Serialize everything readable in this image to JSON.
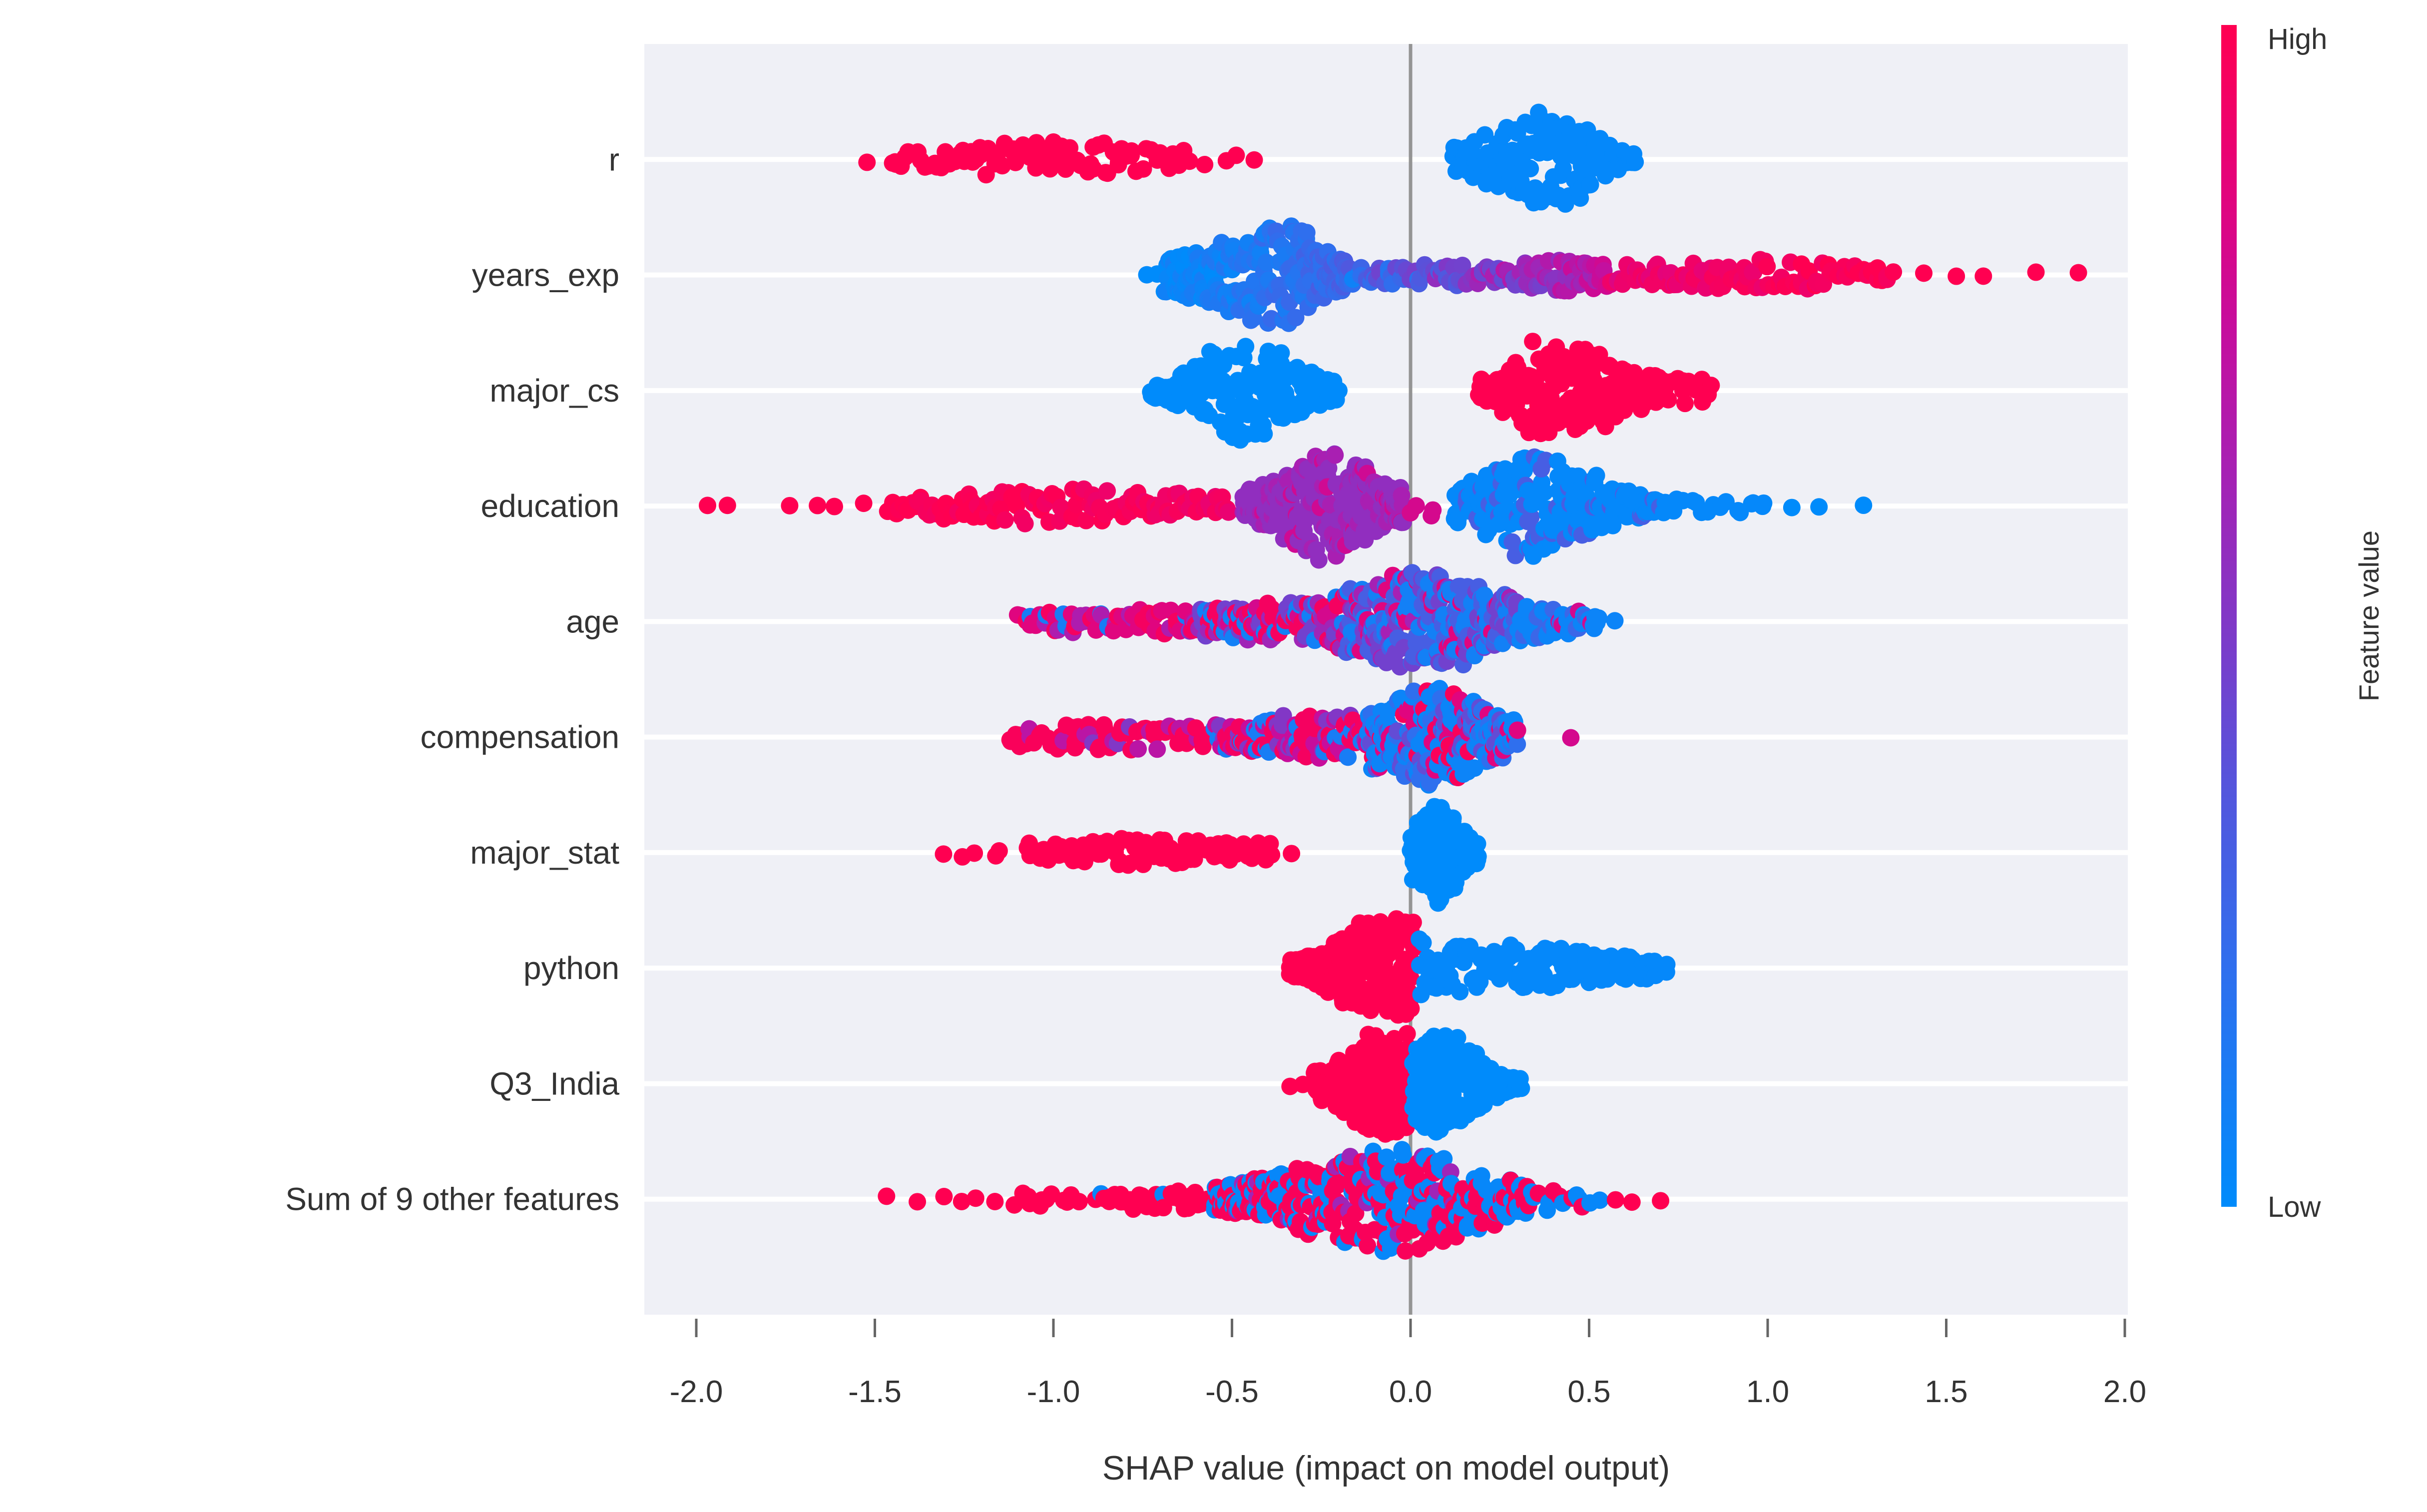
{
  "chart_data": {
    "type": "scatter",
    "variant": "shap-beeswarm-summary",
    "title": "",
    "xlabel": "SHAP value (impact on model output)",
    "x_ticks": [
      -2.0,
      -1.5,
      -1.0,
      -0.5,
      0.0,
      0.5,
      1.0,
      1.5,
      2.0
    ],
    "x_tick_labels": [
      "-2.0",
      "-1.5",
      "-1.0",
      "-0.5",
      "0.0",
      "0.5",
      "1.0",
      "1.5",
      "2.0"
    ],
    "xlim": [
      -2.15,
      2.01
    ],
    "grid": "horizontal-white-lines",
    "zero_line": true,
    "legend_position": "right-colorbar",
    "colorbar": {
      "high_label": "High",
      "low_label": "Low",
      "title": "Feature value"
    },
    "colors": {
      "high": "#ff0051",
      "low": "#008bfb",
      "plot_background": "#eff0f6",
      "gridline": "#ffffff",
      "zero_line": "#949494",
      "text": "#333333"
    },
    "colormap_stops": [
      [
        0.0,
        "#008bfb"
      ],
      [
        0.2,
        "#2f6fee"
      ],
      [
        0.35,
        "#5356dd"
      ],
      [
        0.5,
        "#8237c6"
      ],
      [
        0.62,
        "#a621b4"
      ],
      [
        0.75,
        "#c70d9c"
      ],
      [
        0.87,
        "#e50379"
      ],
      [
        1.0,
        "#ff0051"
      ]
    ],
    "features": [
      {
        "name": "r",
        "segments": [
          {
            "kind": "dots",
            "xs": [
              -1.52
            ],
            "color": {
              "t": 1
            }
          },
          {
            "kind": "swarm",
            "from": -1.46,
            "to": -0.62,
            "n": 85,
            "w": [
              0.2,
              0.38,
              0.2
            ],
            "peak": 0.5,
            "color": {
              "t": 1
            }
          },
          {
            "kind": "swarm",
            "from": -0.59,
            "to": -0.44,
            "n": 4,
            "w": [
              0.1,
              0.12,
              0.1
            ],
            "peak": 0.5,
            "color": {
              "t": 1
            }
          },
          {
            "kind": "swarm",
            "from": 0.12,
            "to": 0.63,
            "n": 195,
            "w": [
              0.28,
              1.0,
              0.1
            ],
            "peak": 0.55,
            "color": {
              "t": 0.02
            }
          }
        ]
      },
      {
        "name": "years_exp",
        "segments": [
          {
            "kind": "dots",
            "xs": [
              -0.74,
              -0.71
            ],
            "color": {
              "t": 0
            }
          },
          {
            "kind": "swarm",
            "from": -0.69,
            "to": -0.16,
            "n": 235,
            "w": [
              0.35,
              1.0,
              0.3
            ],
            "peak": 0.62,
            "color": {
              "grad": [
                0.0,
                0.28
              ],
              "noise": 0.08
            }
          },
          {
            "kind": "swarm",
            "from": -0.16,
            "to": 0.29,
            "n": 65,
            "w": [
              0.16,
              0.2,
              0.16
            ],
            "peak": 0.5,
            "color": {
              "grad": [
                0.2,
                0.55
              ],
              "noise": 0.18
            }
          },
          {
            "kind": "swarm",
            "from": 0.29,
            "to": 0.56,
            "n": 55,
            "w": [
              0.26,
              0.34,
              0.26
            ],
            "peak": 0.5,
            "color": {
              "grad": [
                0.5,
                0.75
              ],
              "noise": 0.12
            }
          },
          {
            "kind": "swarm",
            "from": 0.56,
            "to": 1.35,
            "n": 105,
            "w": [
              0.2,
              0.3,
              0.18
            ],
            "peak": 0.55,
            "color": {
              "grad": [
                0.88,
                1.0
              ],
              "noise": 0.05
            }
          },
          {
            "kind": "dots",
            "xs": [
              1.44,
              1.53,
              1.6,
              1.75,
              1.87
            ],
            "color": {
              "t": 1
            }
          }
        ]
      },
      {
        "name": "major_cs",
        "segments": [
          {
            "kind": "swarm",
            "from": -0.73,
            "to": -0.2,
            "n": 215,
            "w": [
              0.15,
              0.95,
              0.2
            ],
            "peak": 0.5,
            "color": {
              "t": 0
            }
          },
          {
            "kind": "swarm",
            "from": 0.19,
            "to": 0.7,
            "n": 215,
            "w": [
              0.2,
              1.0,
              0.28
            ],
            "peak": 0.4,
            "color": {
              "t": 1
            }
          },
          {
            "kind": "swarm",
            "from": 0.7,
            "to": 0.85,
            "n": 22,
            "w": [
              0.26,
              0.32,
              0.15
            ],
            "peak": 0.5,
            "color": {
              "t": 1
            }
          }
        ]
      },
      {
        "name": "education",
        "segments": [
          {
            "kind": "dots",
            "xs": [
              -1.97,
              -1.91,
              -1.74,
              -1.66,
              -1.61,
              -1.53
            ],
            "color": {
              "t": 1
            }
          },
          {
            "kind": "swarm",
            "from": -1.47,
            "to": -0.5,
            "n": 125,
            "w": [
              0.2,
              0.36,
              0.22
            ],
            "peak": 0.45,
            "color": {
              "grad": [
                1.0,
                0.93
              ],
              "noise": 0.04
            }
          },
          {
            "kind": "swarm",
            "from": -0.47,
            "to": -0.02,
            "n": 275,
            "w": [
              0.3,
              1.0,
              0.35
            ],
            "peak": 0.55,
            "color": {
              "mix": [
                [
                  0.55,
                  0.72
                ],
                [
                  0.63,
                  0.2
                ],
                [
                  0.78,
                  0.08
                ]
              ]
            }
          },
          {
            "kind": "swarm",
            "from": 0.0,
            "to": 0.09,
            "n": 4,
            "w": [
              0.25,
              0.3,
              0.25
            ],
            "peak": 0.5,
            "color": {
              "mix": [
                [
                  0.8,
                  0.7
                ],
                [
                  0.9,
                  0.3
                ]
              ]
            }
          },
          {
            "kind": "swarm",
            "from": 0.12,
            "to": 0.7,
            "n": 235,
            "w": [
              0.35,
              1.0,
              0.16
            ],
            "peak": 0.36,
            "color": {
              "mix": [
                [
                  0.02,
                  0.85
                ],
                [
                  0.3,
                  0.15
                ]
              ]
            }
          },
          {
            "kind": "swarm",
            "from": 0.7,
            "to": 1.0,
            "n": 18,
            "w": [
              0.16,
              0.16,
              0.12
            ],
            "peak": 0.5,
            "color": {
              "t": 0.02
            }
          },
          {
            "kind": "dots",
            "xs": [
              1.07,
              1.14,
              1.27
            ],
            "color": {
              "t": 0
            }
          }
        ]
      },
      {
        "name": "age",
        "segments": [
          {
            "kind": "swarm",
            "from": -1.1,
            "to": -0.62,
            "n": 55,
            "w": [
              0.16,
              0.24,
              0.26
            ],
            "peak": 0.6,
            "color": {
              "mix": [
                [
                  0.85,
                  0.45
                ],
                [
                  0.65,
                  0.28
                ],
                [
                  0.1,
                  0.15
                ],
                [
                  0.95,
                  0.12
                ]
              ]
            }
          },
          {
            "kind": "swarm",
            "from": -0.62,
            "to": -0.18,
            "n": 130,
            "w": [
              0.28,
              0.42,
              0.55
            ],
            "peak": 0.7,
            "color": {
              "mix": [
                [
                  0.95,
                  0.3
                ],
                [
                  0.8,
                  0.15
                ],
                [
                  0.45,
                  0.18
                ],
                [
                  0.08,
                  0.25
                ],
                [
                  0.6,
                  0.12
                ]
              ]
            }
          },
          {
            "kind": "swarm",
            "from": -0.18,
            "to": 0.3,
            "n": 270,
            "w": [
              0.6,
              1.0,
              0.5
            ],
            "peak": 0.46,
            "color": {
              "mix": [
                [
                  0.3,
                  0.28
                ],
                [
                  0.45,
                  0.25
                ],
                [
                  0.08,
                  0.25
                ],
                [
                  0.85,
                  0.12
                ],
                [
                  0.62,
                  0.1
                ]
              ]
            }
          },
          {
            "kind": "swarm",
            "from": 0.3,
            "to": 0.53,
            "n": 55,
            "w": [
              0.45,
              0.32,
              0.15
            ],
            "peak": 0.2,
            "color": {
              "mix": [
                [
                  0.05,
                  0.6
                ],
                [
                  0.25,
                  0.28
                ],
                [
                  0.8,
                  0.12
                ]
              ]
            }
          },
          {
            "kind": "dots",
            "xs": [
              0.57
            ],
            "color": {
              "t": 0.05
            }
          }
        ]
      },
      {
        "name": "compensation",
        "segments": [
          {
            "kind": "swarm",
            "from": -1.13,
            "to": -0.55,
            "n": 70,
            "w": [
              0.18,
              0.3,
              0.22
            ],
            "peak": 0.4,
            "color": {
              "mix": [
                [
                  0.97,
                  0.85
                ],
                [
                  0.7,
                  0.1
                ],
                [
                  0.5,
                  0.05
                ]
              ]
            }
          },
          {
            "kind": "swarm",
            "from": -0.55,
            "to": -0.12,
            "n": 115,
            "w": [
              0.25,
              0.45,
              0.6
            ],
            "peak": 0.75,
            "color": {
              "mix": [
                [
                  0.95,
                  0.48
                ],
                [
                  0.75,
                  0.2
                ],
                [
                  0.5,
                  0.12
                ],
                [
                  0.1,
                  0.2
                ]
              ]
            }
          },
          {
            "kind": "swarm",
            "from": -0.12,
            "to": 0.3,
            "n": 255,
            "w": [
              0.6,
              1.0,
              0.4
            ],
            "peak": 0.45,
            "color": {
              "mix": [
                [
                  0.05,
                  0.45
                ],
                [
                  0.2,
                  0.22
                ],
                [
                  0.4,
                  0.1
                ],
                [
                  0.85,
                  0.13
                ],
                [
                  0.97,
                  0.1
                ]
              ]
            }
          },
          {
            "kind": "dots",
            "xs": [
              0.45
            ],
            "color": {
              "t": 0.8
            }
          }
        ]
      },
      {
        "name": "major_stat",
        "segments": [
          {
            "kind": "dots",
            "xs": [
              -1.31
            ],
            "color": {
              "t": 1
            }
          },
          {
            "kind": "swarm",
            "from": -1.25,
            "to": -1.12,
            "n": 4,
            "w": [
              0.1,
              0.12,
              0.1
            ],
            "peak": 0.5,
            "color": {
              "t": 1
            }
          },
          {
            "kind": "swarm",
            "from": -1.08,
            "to": -0.38,
            "n": 95,
            "w": [
              0.18,
              0.26,
              0.18
            ],
            "peak": 0.5,
            "color": {
              "t": 1
            }
          },
          {
            "kind": "dots",
            "xs": [
              -0.33
            ],
            "color": {
              "t": 1
            }
          },
          {
            "kind": "swarm",
            "from": 0.0,
            "to": 0.19,
            "n": 150,
            "w": [
              0.5,
              1.0,
              0.2
            ],
            "peak": 0.4,
            "color": {
              "t": 0
            }
          }
        ]
      },
      {
        "name": "python",
        "segments": [
          {
            "kind": "swarm",
            "from": -0.34,
            "to": 0.01,
            "n": 270,
            "w": [
              0.18,
              1.0,
              0.85
            ],
            "peak": 0.8,
            "color": {
              "t": 1
            }
          },
          {
            "kind": "swarm",
            "from": 0.02,
            "to": 0.72,
            "n": 150,
            "w": [
              0.55,
              0.42,
              0.22
            ],
            "peak": 0.3,
            "color": {
              "t": 0.02
            }
          }
        ]
      },
      {
        "name": "Q3_India",
        "segments": [
          {
            "kind": "dots",
            "xs": [
              -0.34,
              -0.3
            ],
            "color": {
              "t": 1
            }
          },
          {
            "kind": "swarm",
            "from": -0.27,
            "to": 0.0,
            "n": 230,
            "w": [
              0.28,
              1.0,
              0.9
            ],
            "peak": 0.74,
            "color": {
              "t": 1
            }
          },
          {
            "kind": "swarm",
            "from": 0.005,
            "to": 0.31,
            "n": 210,
            "w": [
              0.75,
              1.0,
              0.1
            ],
            "peak": 0.21,
            "color": {
              "t": 0
            }
          }
        ]
      },
      {
        "name": "Sum of 9 other features",
        "segments": [
          {
            "kind": "dots",
            "xs": [
              -1.47,
              -1.38,
              -1.31,
              -1.26,
              -1.22,
              -1.16
            ],
            "color": {
              "t": 1
            }
          },
          {
            "kind": "swarm",
            "from": -1.12,
            "to": -0.92,
            "n": 12,
            "w": [
              0.12,
              0.15,
              0.12
            ],
            "peak": 0.5,
            "color": {
              "t": 1
            }
          },
          {
            "kind": "swarm",
            "from": -0.88,
            "to": -0.55,
            "n": 38,
            "w": [
              0.15,
              0.2,
              0.2
            ],
            "peak": 0.5,
            "color": {
              "mix": [
                [
                  1.0,
                  0.92
                ],
                [
                  0.03,
                  0.08
                ]
              ]
            }
          },
          {
            "kind": "swarm",
            "from": -0.55,
            "to": 0.12,
            "n": 300,
            "w": [
              0.28,
              1.0,
              0.9
            ],
            "peak": 0.76,
            "color": {
              "mix": [
                [
                  0.97,
                  0.5
                ],
                [
                  0.03,
                  0.42
                ],
                [
                  0.6,
                  0.08
                ]
              ]
            }
          },
          {
            "kind": "swarm",
            "from": 0.12,
            "to": 0.33,
            "n": 70,
            "w": [
              0.8,
              0.55,
              0.35
            ],
            "peak": 0.2,
            "color": {
              "mix": [
                [
                  0.03,
                  0.55
                ],
                [
                  0.97,
                  0.45
                ]
              ]
            }
          },
          {
            "kind": "swarm",
            "from": 0.33,
            "to": 0.5,
            "n": 14,
            "w": [
              0.2,
              0.2,
              0.15
            ],
            "peak": 0.5,
            "color": {
              "mix": [
                [
                  0.03,
                  0.7
                ],
                [
                  0.97,
                  0.3
                ]
              ]
            }
          },
          {
            "kind": "dots",
            "xs": [
              0.53
            ],
            "color": {
              "t": 0.03
            }
          },
          {
            "kind": "dots",
            "xs": [
              0.57,
              0.62,
              0.7
            ],
            "color": {
              "t": 1
            }
          }
        ]
      }
    ]
  }
}
